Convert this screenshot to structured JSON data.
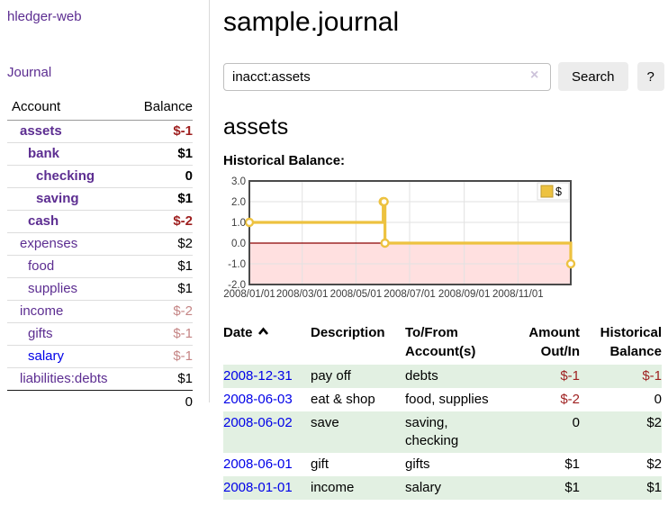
{
  "app": {
    "title": "hledger-web"
  },
  "sidebar": {
    "journal_link": "Journal",
    "accounts_table": {
      "headers": {
        "account": "Account",
        "balance": "Balance"
      },
      "rows": [
        {
          "name": "assets",
          "level": 1,
          "bold": true,
          "balance": "$-1",
          "balance_style": "neg-strong"
        },
        {
          "name": "bank",
          "level": 2,
          "bold": true,
          "balance": "$1",
          "balance_style": ""
        },
        {
          "name": "checking",
          "level": 3,
          "bold": true,
          "balance": "0",
          "balance_style": ""
        },
        {
          "name": "saving",
          "level": 3,
          "bold": true,
          "balance": "$1",
          "balance_style": ""
        },
        {
          "name": "cash",
          "level": 2,
          "bold": true,
          "balance": "$-2",
          "balance_style": "neg-strong"
        },
        {
          "name": "expenses",
          "level": 1,
          "bold": false,
          "balance": "$2",
          "balance_style": ""
        },
        {
          "name": "food",
          "level": 2,
          "bold": false,
          "balance": "$1",
          "balance_style": ""
        },
        {
          "name": "supplies",
          "level": 2,
          "bold": false,
          "balance": "$1",
          "balance_style": ""
        },
        {
          "name": "income",
          "level": 1,
          "bold": false,
          "balance": "$-2",
          "balance_style": "neg-soft"
        },
        {
          "name": "gifts",
          "level": 2,
          "bold": false,
          "balance": "$-1",
          "balance_style": "neg-soft"
        },
        {
          "name": "salary",
          "level": 2,
          "bold": false,
          "balance": "$-1",
          "balance_style": "neg-soft",
          "link_color": "blue"
        },
        {
          "name": "liabilities:debts",
          "level": 1,
          "bold": false,
          "balance": "$1",
          "balance_style": "",
          "last": true
        }
      ],
      "total": "0"
    }
  },
  "main": {
    "title": "sample.journal",
    "search": {
      "value": "inacct:assets",
      "clear_icon": "×",
      "button": "Search",
      "help_button": "?"
    },
    "account_heading": "assets",
    "chart_label": "Historical Balance:"
  },
  "chart_data": {
    "type": "line",
    "step": true,
    "title": "Historical Balance",
    "series": [
      {
        "name": "$",
        "color": "#edc240",
        "points": [
          [
            "2008-01-01",
            1
          ],
          [
            "2008-06-01",
            2
          ],
          [
            "2008-06-02",
            2
          ],
          [
            "2008-06-03",
            0
          ],
          [
            "2008-12-31",
            -1
          ]
        ]
      }
    ],
    "xlim": [
      "2008-01-01",
      "2008-12-31"
    ],
    "ylim": [
      -2,
      3
    ],
    "yticks": [
      {
        "v": 3,
        "label": "3.0"
      },
      {
        "v": 2,
        "label": "2.0"
      },
      {
        "v": 1,
        "label": "1.0"
      },
      {
        "v": 0,
        "label": "0.0"
      },
      {
        "v": -1,
        "label": "-1.0"
      },
      {
        "v": -2,
        "label": "-2.0"
      }
    ],
    "xticks": [
      {
        "date": "2008-01-01",
        "label": "2008/01/01"
      },
      {
        "date": "2008-03-01",
        "label": "2008/03/01"
      },
      {
        "date": "2008-05-01",
        "label": "2008/05/01"
      },
      {
        "date": "2008-07-01",
        "label": "2008/07/01"
      },
      {
        "date": "2008-09-01",
        "label": "2008/09/01"
      },
      {
        "date": "2008-11-01",
        "label": "2008/11/01"
      }
    ],
    "legend": {
      "label": "$",
      "position": "top-right"
    },
    "grid": true,
    "line_color": "#edc240",
    "marker": "open-circle",
    "zero_line_color": "#8b0000",
    "negative_region_color": "rgba(255,0,0,0.12)"
  },
  "register_table": {
    "headers": {
      "date": "Date",
      "description": "Description",
      "accounts": "To/From Account(s)",
      "amount": "Amount Out/In",
      "balance": "Historical Balance"
    },
    "sort": {
      "column": "date",
      "direction": "asc"
    },
    "rows": [
      {
        "date": "2008-12-31",
        "description": "pay off",
        "accounts": "debts",
        "amount": "$-1",
        "amount_neg": true,
        "balance": "$-1",
        "balance_neg": true
      },
      {
        "date": "2008-06-03",
        "description": "eat & shop",
        "accounts": "food, supplies",
        "amount": "$-2",
        "amount_neg": true,
        "balance": "0",
        "balance_neg": false
      },
      {
        "date": "2008-06-02",
        "description": "save",
        "accounts": "saving,\nchecking",
        "amount": "0",
        "amount_neg": false,
        "balance": "$2",
        "balance_neg": false
      },
      {
        "date": "2008-06-01",
        "description": "gift",
        "accounts": "gifts",
        "amount": "$1",
        "amount_neg": false,
        "balance": "$2",
        "balance_neg": false
      },
      {
        "date": "2008-01-01",
        "description": "income",
        "accounts": "salary",
        "amount": "$1",
        "amount_neg": false,
        "balance": "$1",
        "balance_neg": false
      }
    ]
  },
  "colors": {
    "link_purple": "#5c2d91",
    "link_blue": "#0000e8",
    "negative_strong": "#9e1f1f",
    "negative_soft": "#c58585",
    "row_green": "#e2f0e2",
    "chart_line": "#edc240",
    "chart_zero_line": "#8b0000",
    "chart_negative_fill": "rgba(255,0,0,0.12)",
    "button_bg": "#ececec"
  }
}
